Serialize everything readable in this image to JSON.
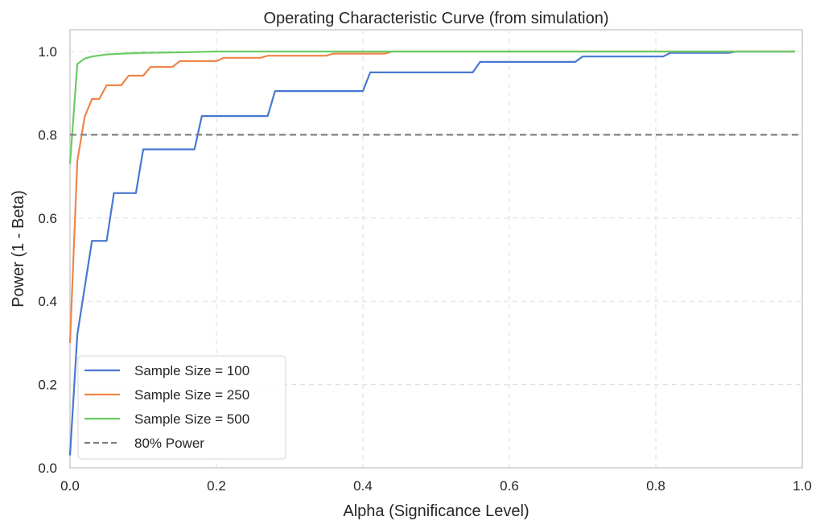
{
  "chart_data": {
    "type": "line",
    "title": "Operating Characteristic Curve (from simulation)",
    "xlabel": "Alpha (Significance Level)",
    "ylabel": "Power (1 - Beta)",
    "xlim": [
      0.0,
      1.0
    ],
    "ylim": [
      0.0,
      1.05
    ],
    "grid": true,
    "xticks": [
      "0.0",
      "0.2",
      "0.4",
      "0.6",
      "0.8",
      "1.0"
    ],
    "xtick_values": [
      0.0,
      0.2,
      0.4,
      0.6,
      0.8,
      1.0
    ],
    "yticks": [
      "0.0",
      "0.2",
      "0.4",
      "0.6",
      "0.8",
      "1.0"
    ],
    "ytick_values": [
      0.0,
      0.2,
      0.4,
      0.6,
      0.8,
      1.0
    ],
    "legend_position": "lower-left",
    "series": [
      {
        "name": "Sample Size = 100",
        "color": "#4878d0",
        "style": "solid",
        "x": [
          0.0,
          0.01,
          0.03,
          0.05,
          0.06,
          0.09,
          0.1,
          0.17,
          0.18,
          0.27,
          0.28,
          0.4,
          0.41,
          0.55,
          0.56,
          0.69,
          0.7,
          0.81,
          0.82,
          0.9,
          0.91,
          0.99
        ],
        "y": [
          0.03,
          0.32,
          0.545,
          0.545,
          0.66,
          0.66,
          0.765,
          0.765,
          0.845,
          0.845,
          0.905,
          0.905,
          0.95,
          0.95,
          0.975,
          0.975,
          0.988,
          0.988,
          0.997,
          0.997,
          1.0,
          1.0
        ]
      },
      {
        "name": "Sample Size = 250",
        "color": "#ee854a",
        "style": "solid",
        "x": [
          0.0,
          0.01,
          0.02,
          0.03,
          0.04,
          0.05,
          0.07,
          0.08,
          0.1,
          0.11,
          0.14,
          0.15,
          0.2,
          0.21,
          0.26,
          0.27,
          0.35,
          0.36,
          0.43,
          0.44,
          0.99
        ],
        "y": [
          0.3,
          0.737,
          0.843,
          0.886,
          0.886,
          0.919,
          0.919,
          0.942,
          0.942,
          0.963,
          0.963,
          0.977,
          0.977,
          0.985,
          0.985,
          0.99,
          0.99,
          0.995,
          0.995,
          1.0,
          1.0
        ]
      },
      {
        "name": "Sample Size = 500",
        "color": "#6acc64",
        "style": "solid",
        "x": [
          0.0,
          0.01,
          0.02,
          0.03,
          0.05,
          0.07,
          0.1,
          0.15,
          0.2,
          0.99
        ],
        "y": [
          0.73,
          0.97,
          0.983,
          0.988,
          0.993,
          0.995,
          0.997,
          0.998,
          1.0,
          1.0
        ]
      },
      {
        "name": "80% Power",
        "color": "#808080",
        "style": "dashed",
        "x": [
          0.0,
          1.0
        ],
        "y": [
          0.8,
          0.8
        ]
      }
    ]
  }
}
